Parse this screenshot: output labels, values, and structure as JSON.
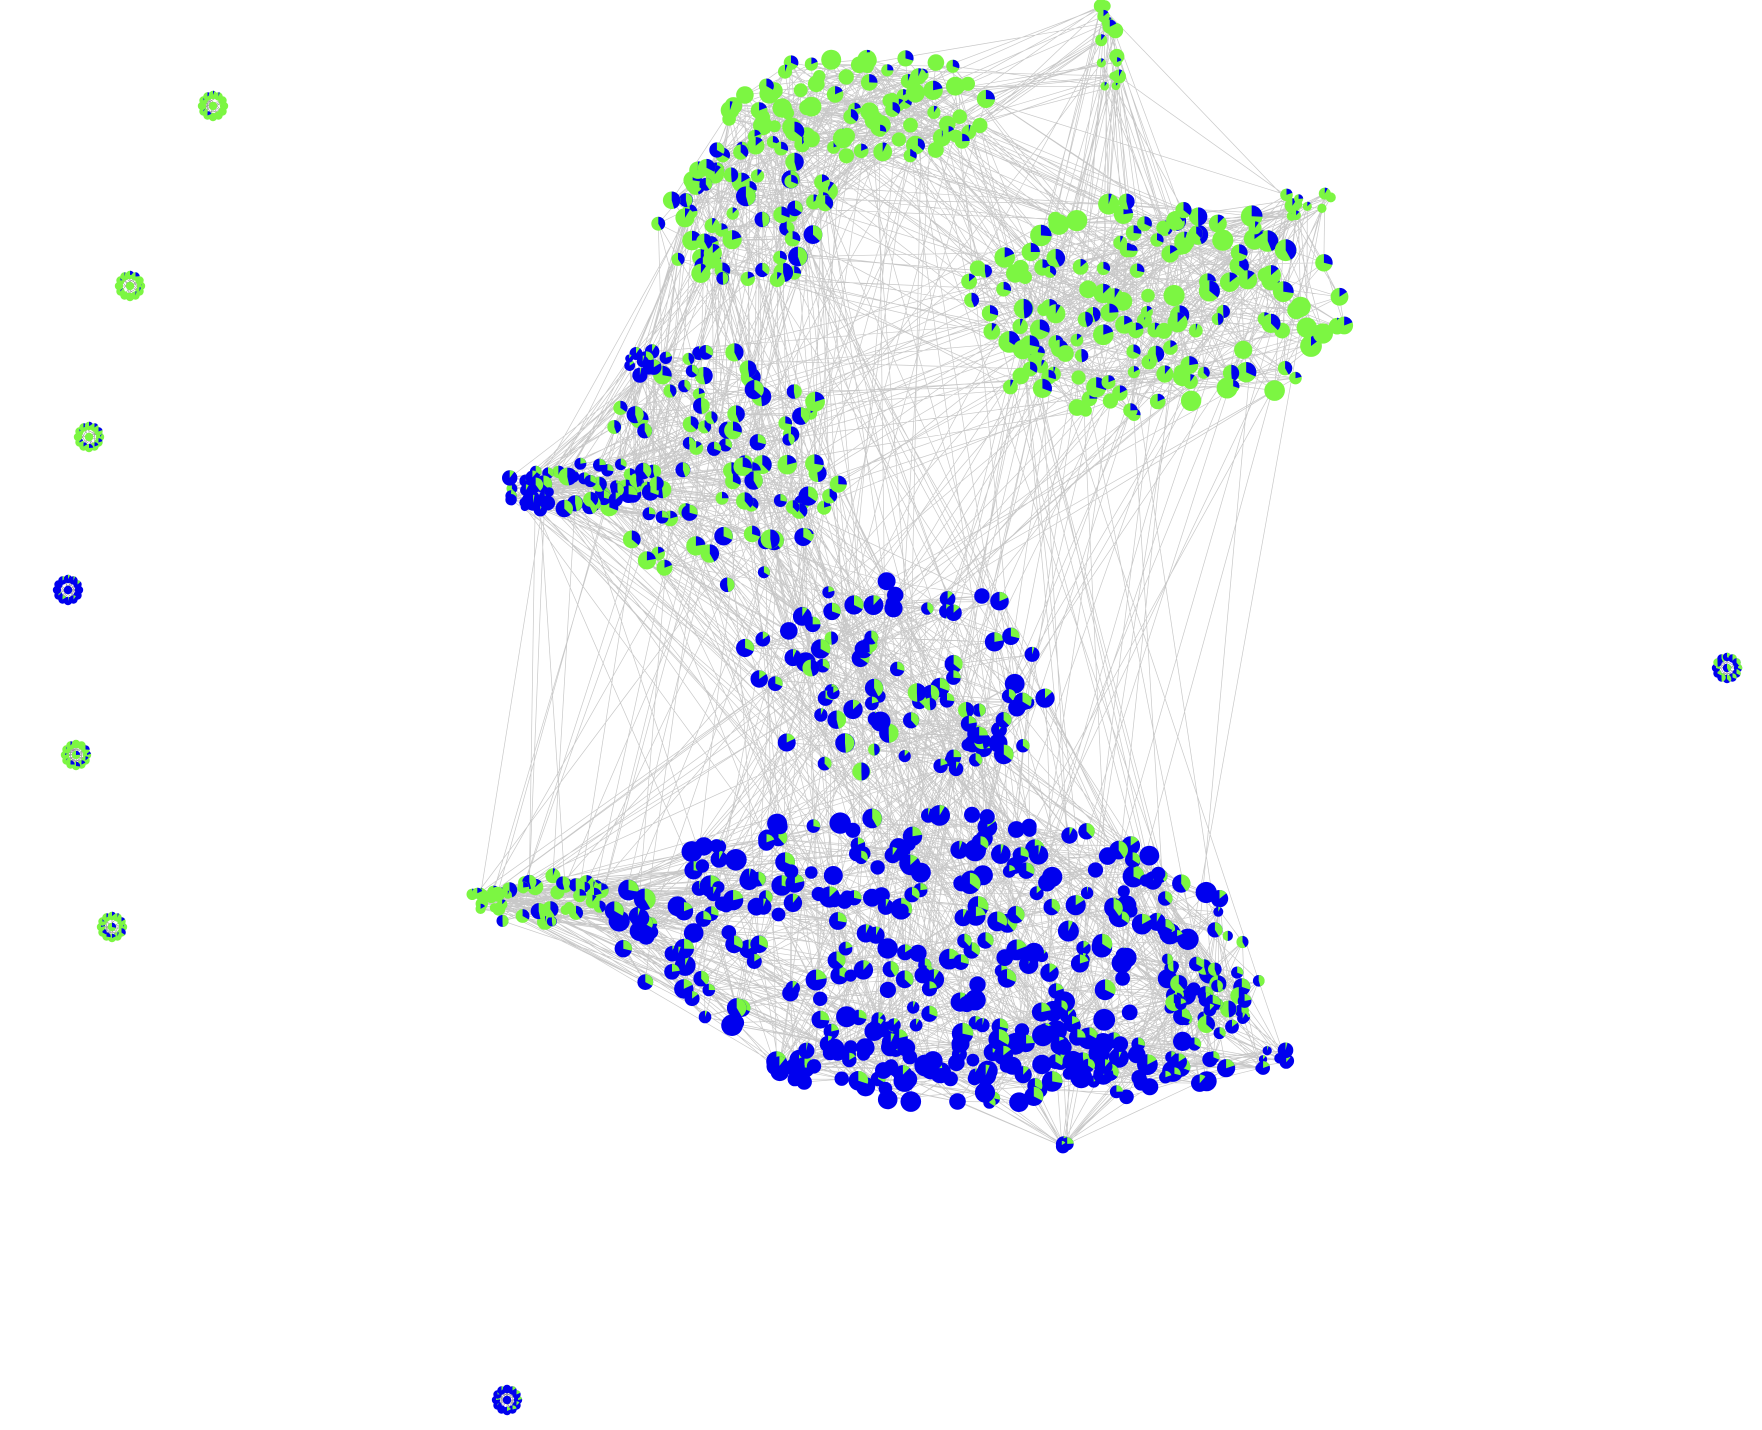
{
  "diagram": {
    "type": "network-graph",
    "node_style": "pie-chart",
    "colors": {
      "category_a": "#0000ee",
      "category_b": "#7cf642",
      "edge": "#9a9a9a",
      "background": "#ffffff"
    },
    "regions": [
      {
        "name": "top-cap",
        "mix_b": 0.92
      },
      {
        "name": "upper-left-arm",
        "mix_b": 0.62
      },
      {
        "name": "upper-right-lobe",
        "mix_b": 0.8
      },
      {
        "name": "upper-left-lobe",
        "mix_b": 0.55
      },
      {
        "name": "left-spike",
        "mix_b": 0.4
      },
      {
        "name": "waist",
        "mix_b": 0.25
      },
      {
        "name": "lower-body",
        "mix_b": 0.12
      },
      {
        "name": "left-lower-spike",
        "mix_b": 0.75
      },
      {
        "name": "bottom-fringe",
        "mix_b": 0.05
      },
      {
        "name": "right-lower-fringe",
        "mix_b": 0.35
      }
    ],
    "isolated_components": [
      {
        "name": "component-1",
        "mix_b": 0.95
      },
      {
        "name": "component-2",
        "mix_b": 0.9
      },
      {
        "name": "component-3",
        "mix_b": 0.9
      },
      {
        "name": "component-4",
        "mix_b": 0.05
      },
      {
        "name": "component-5",
        "mix_b": 0.85
      },
      {
        "name": "component-6",
        "mix_b": 0.8
      },
      {
        "name": "component-7",
        "mix_b": 0.4
      },
      {
        "name": "component-8",
        "mix_b": 0.1
      }
    ]
  }
}
